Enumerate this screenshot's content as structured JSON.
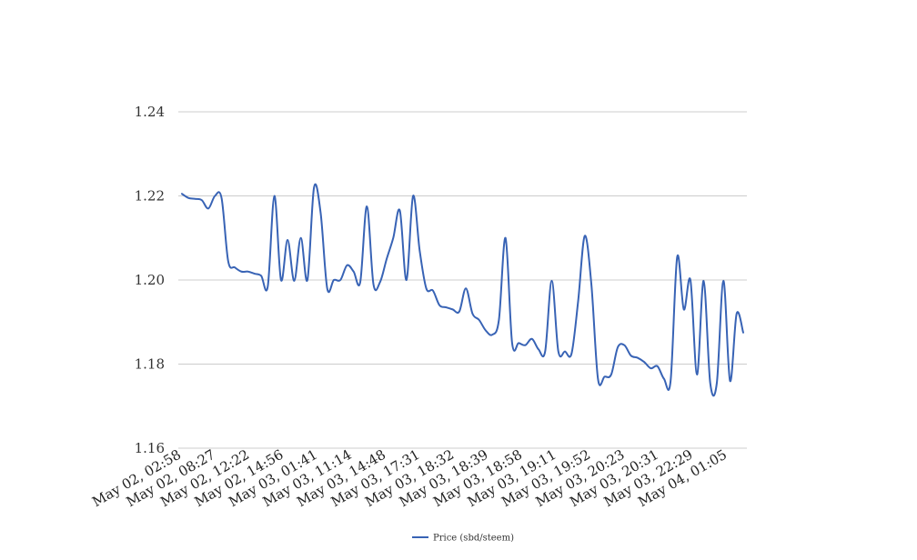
{
  "chart_data": {
    "type": "line",
    "title": "",
    "xlabel": "",
    "ylabel": "",
    "ylim": [
      1.16,
      1.24
    ],
    "yticks": [
      "1.16",
      "1.18",
      "1.20",
      "1.22",
      "1.24"
    ],
    "grid": true,
    "legend": "bottom-center",
    "color": "#3863b5",
    "x_tick_labels": [
      "May 02, 02:58",
      "May 02, 08:27",
      "May 02, 12:22",
      "May 02, 14:56",
      "May 03, 01:41",
      "May 03, 11:14",
      "May 03, 14:48",
      "May 03, 17:31",
      "May 03, 18:32",
      "May 03, 18:39",
      "May 03, 18:58",
      "May 03, 19:11",
      "May 03, 19:52",
      "May 03, 20:23",
      "May 03, 20:31",
      "May 03, 22:29",
      "May 04, 01:05"
    ],
    "series": [
      {
        "name": "Price (sbd/steem)",
        "values": [
          1.2205,
          1.2195,
          1.2193,
          1.219,
          1.217,
          1.22,
          1.2195,
          1.2045,
          1.203,
          1.202,
          1.202,
          1.2015,
          1.201,
          1.1985,
          1.22,
          1.2,
          1.2095,
          1.1998,
          1.21,
          1.2,
          1.222,
          1.216,
          1.198,
          1.2,
          1.2,
          1.2035,
          1.202,
          1.1995,
          1.2175,
          1.199,
          1.1995,
          1.205,
          1.21,
          1.2165,
          1.2,
          1.22,
          1.207,
          1.198,
          1.1975,
          1.194,
          1.1935,
          1.193,
          1.1925,
          1.198,
          1.192,
          1.1905,
          1.188,
          1.187,
          1.1905,
          1.21,
          1.185,
          1.185,
          1.1845,
          1.186,
          1.1835,
          1.183,
          1.1998,
          1.183,
          1.183,
          1.1825,
          1.195,
          1.2105,
          1.199,
          1.1765,
          1.177,
          1.1775,
          1.184,
          1.1845,
          1.182,
          1.1815,
          1.1805,
          1.179,
          1.1795,
          1.1765,
          1.176,
          1.2055,
          1.193,
          1.2,
          1.1775,
          1.1998,
          1.1755,
          1.1755,
          1.1998,
          1.176,
          1.192,
          1.1875
        ]
      }
    ]
  }
}
